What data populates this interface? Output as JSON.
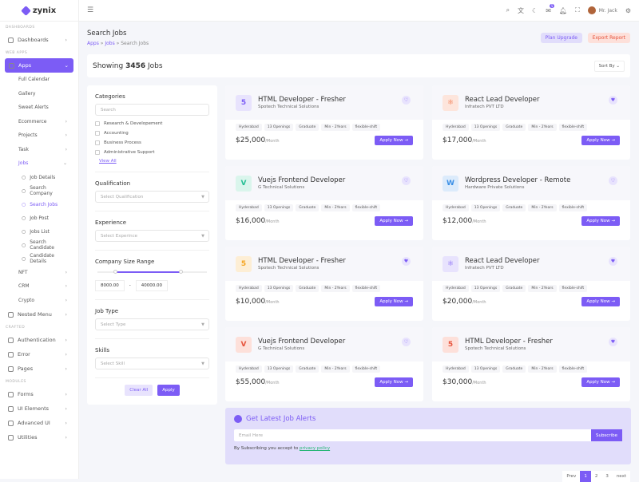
{
  "brand": "zynix",
  "sidebar": {
    "sections": [
      "DASHBOARDS",
      "WEB APPS",
      "CRAFTED",
      "MODULES"
    ],
    "dashboards": "Dashboards",
    "apps": "Apps",
    "app_items": [
      "Full Calendar",
      "Gallery",
      "Sweet Alerts",
      "Ecommerce",
      "Projects",
      "Task",
      "Jobs"
    ],
    "job_items": [
      "Job Details",
      "Search Company",
      "Search Jobs",
      "Job Post",
      "Jobs List",
      "Search Candidate",
      "Candidate Details"
    ],
    "more_apps": [
      "NFT",
      "CRM",
      "Crypto"
    ],
    "nested": "Nested Menu",
    "crafted": [
      "Authentication",
      "Error",
      "Pages"
    ],
    "modules": [
      "Forms",
      "UI Elements",
      "Advanced UI",
      "Utilities"
    ]
  },
  "header": {
    "user": "Mr. Jack",
    "mail_badge": "5"
  },
  "page": {
    "title": "Search Jobs",
    "breadcrumb": [
      "Apps",
      "Jobs",
      "Search Jobs"
    ],
    "plan_upgrade": "Plan Upgrade",
    "export_report": "Export Report",
    "showing_prefix": "Showing ",
    "showing_count": "3456",
    "showing_suffix": " Jobs",
    "sort_by": "Sort By"
  },
  "filter": {
    "categories_title": "Categories",
    "search_placeholder": "Search",
    "categories": [
      "Research & Developement",
      "Accounting",
      "Business Process",
      "Administrative Support"
    ],
    "view_all": "View All",
    "qualification_title": "Qualification",
    "qualification_placeholder": "Select Qualification",
    "experience_title": "Experience",
    "experience_placeholder": "Select Experince",
    "size_title": "Company Size Range",
    "size_min": "8000.00",
    "size_max": "40000.00",
    "range_sep": "-",
    "jobtype_title": "Job Type",
    "jobtype_placeholder": "Select Type",
    "skills_title": "Skills",
    "skills_placeholder": "Select Skill",
    "clear": "Clear All",
    "apply": "Apply"
  },
  "jobs": [
    {
      "title": "HTML Developer - Fresher",
      "company": "Spotech Technical Solutions",
      "salary": "$25,000",
      "icon": "html5-icon",
      "color": "#7c5cf5",
      "bg": "#e8e3fd",
      "fav": false
    },
    {
      "title": "React Lead Developer",
      "company": "Infratech PVT LTD",
      "salary": "$17,000",
      "icon": "react-icon",
      "color": "#f06a3c",
      "bg": "#fde5dc",
      "fav": true
    },
    {
      "title": "Vuejs Frontend Developer",
      "company": "G Technical Solutions",
      "salary": "$16,000",
      "icon": "vue-icon",
      "color": "#26bf94",
      "bg": "#daf5ec",
      "fav": false
    },
    {
      "title": "Wordpress Developer - Remote",
      "company": "Hardware Private Solutions",
      "salary": "$12,000",
      "icon": "wordpress-icon",
      "color": "#3b8fe6",
      "bg": "#dcebfb",
      "fav": false
    },
    {
      "title": "HTML Developer - Fresher",
      "company": "Spotech Technical Solutions",
      "salary": "$10,000",
      "icon": "html5-icon",
      "color": "#f5a623",
      "bg": "#fdeed5",
      "fav": true
    },
    {
      "title": "React Lead Developer",
      "company": "Infratech PVT LTD",
      "salary": "$20,000",
      "icon": "react-icon",
      "color": "#7c5cf5",
      "bg": "#e8e3fd",
      "fav": true
    },
    {
      "title": "Vuejs Frontend Developer",
      "company": "G Technical Solutions",
      "salary": "$55,000",
      "icon": "vue-icon",
      "color": "#e6533c",
      "bg": "#fde0da",
      "fav": false
    },
    {
      "title": "HTML Developer - Fresher",
      "company": "Spotech Technical Solutions",
      "salary": "$30,000",
      "icon": "html5-icon",
      "color": "#e6533c",
      "bg": "#fde0da",
      "fav": true
    }
  ],
  "job_tags": [
    "Hyderabad",
    "13 Openings",
    "Graduate",
    "Min - 2Years",
    "flexible-shift"
  ],
  "per_month": "/Month",
  "apply_now": "Apply Now →",
  "alert": {
    "title": "Get Latest Job Alerts",
    "email_placeholder": "Email Here",
    "subscribe": "Subscribe",
    "note": "By Subscribing you accept to ",
    "policy": "privacy policy"
  },
  "pagination": [
    "Prev",
    "1",
    "2",
    "3",
    "next"
  ]
}
